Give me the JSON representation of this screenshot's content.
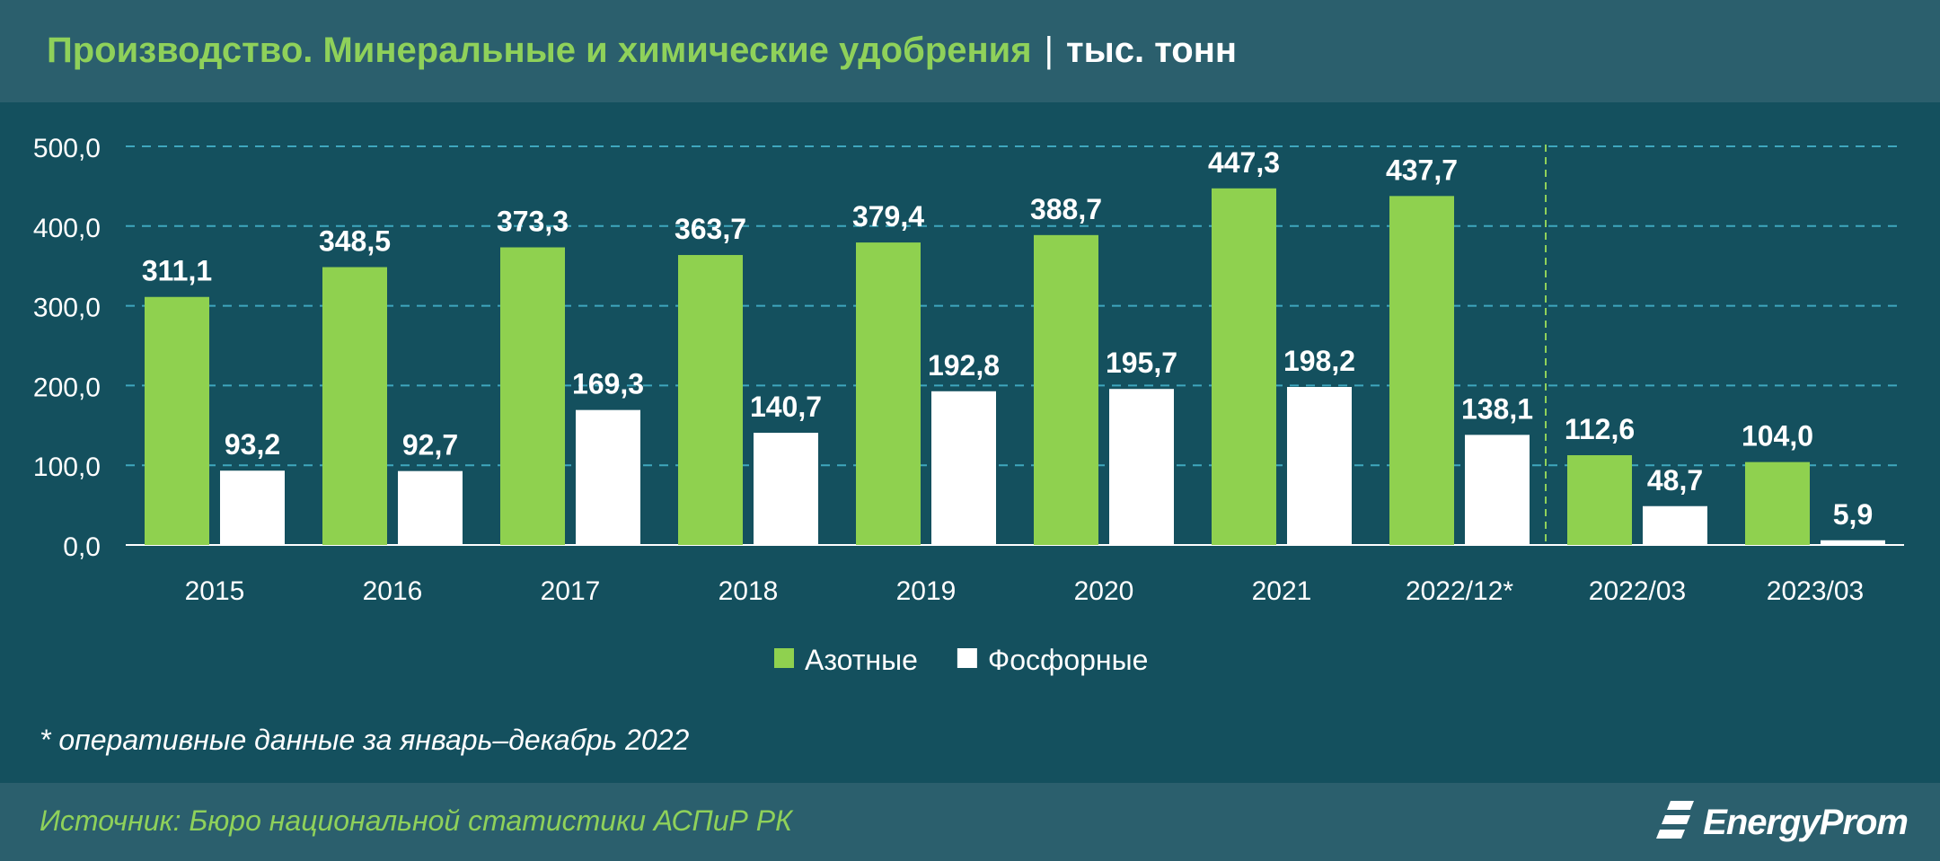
{
  "header": {
    "title": "Производство. Минеральные и химические удобрения",
    "separator": "|",
    "unit": "тыс. тонн"
  },
  "chart_data": {
    "type": "bar",
    "categories": [
      "2015",
      "2016",
      "2017",
      "2018",
      "2019",
      "2020",
      "2021",
      "2022/12*",
      "2022/03",
      "2023/03"
    ],
    "series": [
      {
        "name": "Азотные",
        "color": "#8fd14f",
        "values": [
          311.1,
          348.5,
          373.3,
          363.7,
          379.4,
          388.7,
          447.3,
          437.7,
          112.6,
          104.0
        ],
        "labels": [
          "311,1",
          "348,5",
          "373,3",
          "363,7",
          "379,4",
          "388,7",
          "447,3",
          "437,7",
          "112,6",
          "104,0"
        ]
      },
      {
        "name": "Фосфорные",
        "color": "#ffffff",
        "values": [
          93.2,
          92.7,
          169.3,
          140.7,
          192.8,
          195.7,
          198.2,
          138.1,
          48.7,
          5.9
        ],
        "labels": [
          "93,2",
          "92,7",
          "169,3",
          "140,7",
          "192,8",
          "195,7",
          "198,2",
          "138,1",
          "48,7",
          "5,9"
        ]
      }
    ],
    "yticks": [
      "0,0",
      "100,0",
      "200,0",
      "300,0",
      "400,0",
      "500,0"
    ],
    "ylim": [
      0,
      500
    ],
    "grid": true,
    "legend": "bottom-center"
  },
  "footnote": "* оперативные данные за январь–декабрь 2022",
  "footer": {
    "source": "Источник: Бюро национальной статистики АСПиР РК",
    "logo": "EnergyProm"
  }
}
